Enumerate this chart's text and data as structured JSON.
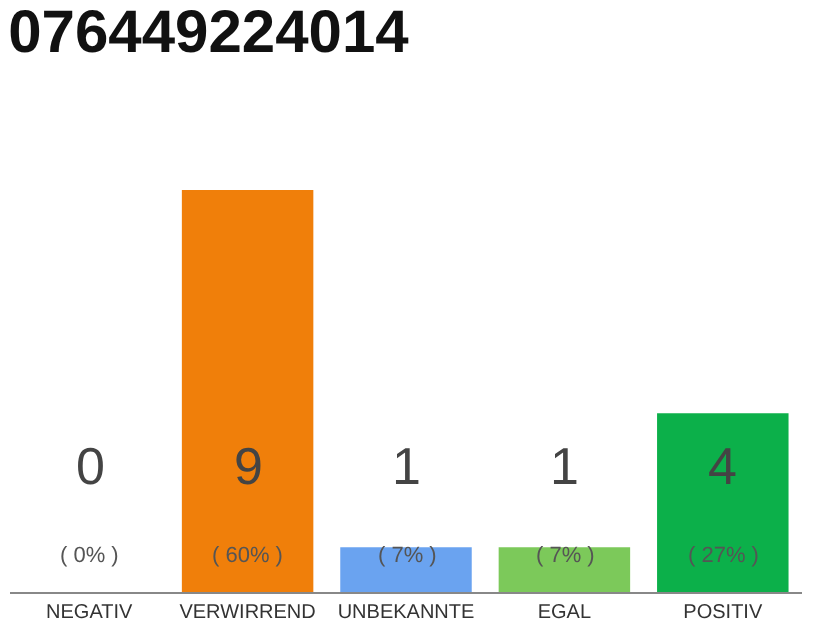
{
  "chart_data": {
    "type": "bar",
    "title": "076449224014",
    "categories": [
      "NEGATIV",
      "VERWIRREND",
      "UNBEKANNTE",
      "EGAL",
      "POSITIV"
    ],
    "values": [
      0,
      9,
      1,
      1,
      4
    ],
    "colors": [
      "#cccccc",
      "#f07f0a",
      "#6aa3f0",
      "#7cc95a",
      "#0cb04a"
    ],
    "value_labels": [
      "0\n( 0% )",
      "9\n( 60% )",
      "1\n( 7% )",
      "1\n( 7% )",
      "4\n( 27% )"
    ],
    "ylim": [
      0,
      9
    ],
    "tick_labels": "x"
  }
}
